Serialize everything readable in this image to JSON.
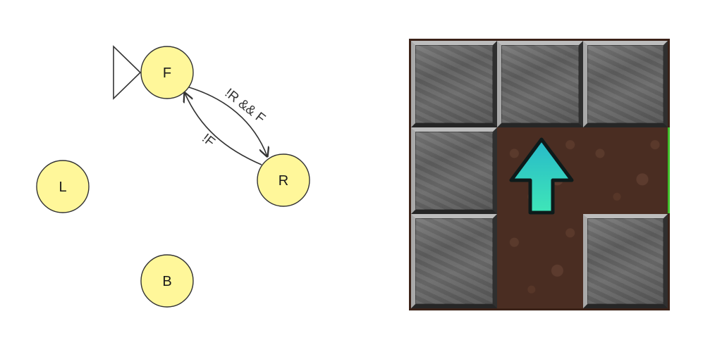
{
  "automaton": {
    "states": [
      {
        "id": "F",
        "label": "F",
        "initial": true
      },
      {
        "id": "R",
        "label": "R",
        "initial": false
      },
      {
        "id": "L",
        "label": "L",
        "initial": false
      },
      {
        "id": "B",
        "label": "B",
        "initial": false
      }
    ],
    "transitions": [
      {
        "from": "F",
        "to": "R",
        "label": "!R && F"
      },
      {
        "from": "R",
        "to": "F",
        "label": "!F"
      }
    ]
  },
  "gridworld": {
    "rows": 3,
    "cols": 3,
    "cells": [
      [
        "wall",
        "wall",
        "wall"
      ],
      [
        "wall",
        "floor",
        "floor"
      ],
      [
        "wall",
        "floor",
        "wall"
      ]
    ],
    "agent": {
      "row": 1,
      "col": 1,
      "heading": "up"
    },
    "goal_side": "right edge of middle row"
  },
  "colors": {
    "state_fill": "#FFF79A",
    "state_stroke": "#333333",
    "agent": "#2ED3C8",
    "goal_edge": "#3FBF2A"
  }
}
